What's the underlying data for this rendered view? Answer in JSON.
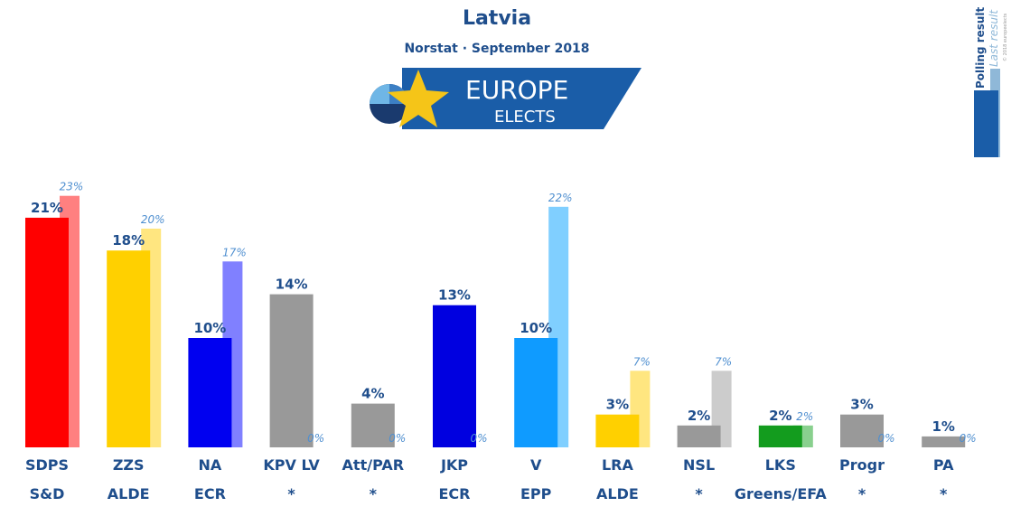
{
  "header": {
    "title": "Latvia",
    "subtitle": "Norstat · September 2018"
  },
  "logo": {
    "line1": "EUROPE",
    "line2": "ELECTS",
    "colors": {
      "banner": "#1a5da8",
      "star": "#f5c518",
      "circle_dark": "#1a3a6e",
      "circle_light": "#6fb6e6"
    }
  },
  "legend": {
    "polling_label": "Polling result",
    "last_label": "Last result",
    "copyright": "© 2018 europeelects",
    "colors": {
      "polling": "#1a5da8",
      "last": "#8fb8d8"
    }
  },
  "chart_data": {
    "type": "bar",
    "title": "Latvia",
    "subtitle": "Norstat · September 2018",
    "ylim": [
      0,
      25
    ],
    "categories": [
      "SDPS",
      "ZZS",
      "NA",
      "KPV LV",
      "Att/PAR",
      "JKP",
      "V",
      "LRA",
      "NSL",
      "LKS",
      "Progr",
      "PA"
    ],
    "groups": [
      "S&D",
      "ALDE",
      "ECR",
      "*",
      "*",
      "ECR",
      "EPP",
      "ALDE",
      "*",
      "Greens/EFA",
      "*",
      "*"
    ],
    "series": [
      {
        "name": "Polling result",
        "values": [
          21,
          18,
          10,
          14,
          4,
          13,
          10,
          3,
          2,
          2,
          3,
          1
        ],
        "labels": [
          "21%",
          "18%",
          "10%",
          "14%",
          "4%",
          "13%",
          "10%",
          "3%",
          "2%",
          "2%",
          "3%",
          "1%"
        ]
      },
      {
        "name": "Last result",
        "values": [
          23,
          20,
          17,
          0,
          0,
          0,
          22,
          7,
          7,
          2,
          0,
          0
        ],
        "labels": [
          "23%",
          "20%",
          "17%",
          "0%",
          "0%",
          "0%",
          "22%",
          "7%",
          "7%",
          "2%",
          "0%",
          "0%"
        ]
      }
    ],
    "colors_now": [
      "#ff0000",
      "#ffd000",
      "#0000f0",
      "#999999",
      "#999999",
      "#0000e0",
      "#0f9bff",
      "#ffd000",
      "#999999",
      "#139c1e",
      "#999999",
      "#999999"
    ],
    "colors_last": [
      "#ff8080",
      "#ffe680",
      "#8080ff",
      "#cccccc",
      "#cccccc",
      "#8080ff",
      "#80cfff",
      "#ffe680",
      "#cccccc",
      "#89d08e",
      "#cccccc",
      "#cccccc"
    ]
  }
}
